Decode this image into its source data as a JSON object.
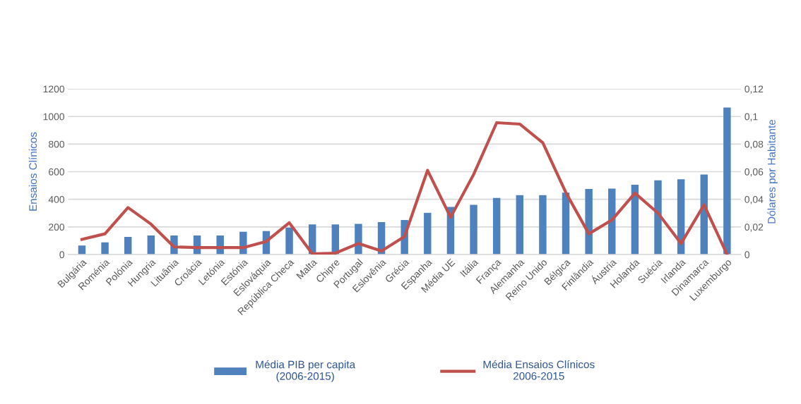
{
  "chart_data": {
    "type": "bar",
    "ylabel": "Ensaios Clínicos",
    "y2label": "Dólares por Habitante",
    "categories": [
      "Bulgária",
      "Roménia",
      "Polónia",
      "Hungria",
      "Lituânia",
      "Croácia",
      "Letónia",
      "Estónia",
      "Eslováquia",
      "República Checa",
      "Malta",
      "Chipre",
      "Portugal",
      "Eslovênia",
      "Grécia",
      "Espanha",
      "Média UE",
      "Itália",
      "França",
      "Alemanha",
      "Reino Unido",
      "Bélgica",
      "Finlândia",
      "Áustria",
      "Holanda",
      "Suécia",
      "Irlanda",
      "Dinamarca",
      "Luxemburgo"
    ],
    "series": [
      {
        "name": "Média PIB per capita\n(2006-2015)",
        "color": "#4f81bd",
        "values": [
          65,
          88,
          128,
          138,
          138,
          138,
          138,
          165,
          170,
          195,
          218,
          218,
          222,
          235,
          250,
          302,
          345,
          360,
          410,
          430,
          430,
          448,
          475,
          478,
          505,
          538,
          545,
          580,
          1065
        ]
      },
      {
        "name": "Média Ensaios Clínicos\n2006-2015",
        "type": "line",
        "axis": "y2",
        "color": "#c0504d",
        "values": [
          0.011,
          0.015,
          0.034,
          0.022,
          0.0055,
          0.005,
          0.005,
          0.005,
          0.0095,
          0.023,
          0.0005,
          0.001,
          0.008,
          0.0025,
          0.013,
          0.061,
          0.027,
          0.058,
          0.0955,
          0.0945,
          0.081,
          0.045,
          0.015,
          0.025,
          0.0445,
          0.03,
          0.008,
          0.036,
          0
        ]
      }
    ],
    "ylim": [
      0,
      1200
    ],
    "yticks": [
      0,
      200,
      400,
      600,
      800,
      1000,
      1200
    ],
    "y2lim": [
      0,
      0.12
    ],
    "y2ticks": [
      {
        "value": 0,
        "label": "0"
      },
      {
        "value": 0.02,
        "label": "0,02"
      },
      {
        "value": 0.04,
        "label": "0,04"
      },
      {
        "value": 0.06,
        "label": "0,06"
      },
      {
        "value": 0.08,
        "label": "0,08"
      },
      {
        "value": 0.1,
        "label": "0,1"
      },
      {
        "value": 0.12,
        "label": "0,12"
      }
    ],
    "grid": "y",
    "legend": "bottom",
    "line_style": "solid",
    "marker": "none"
  }
}
